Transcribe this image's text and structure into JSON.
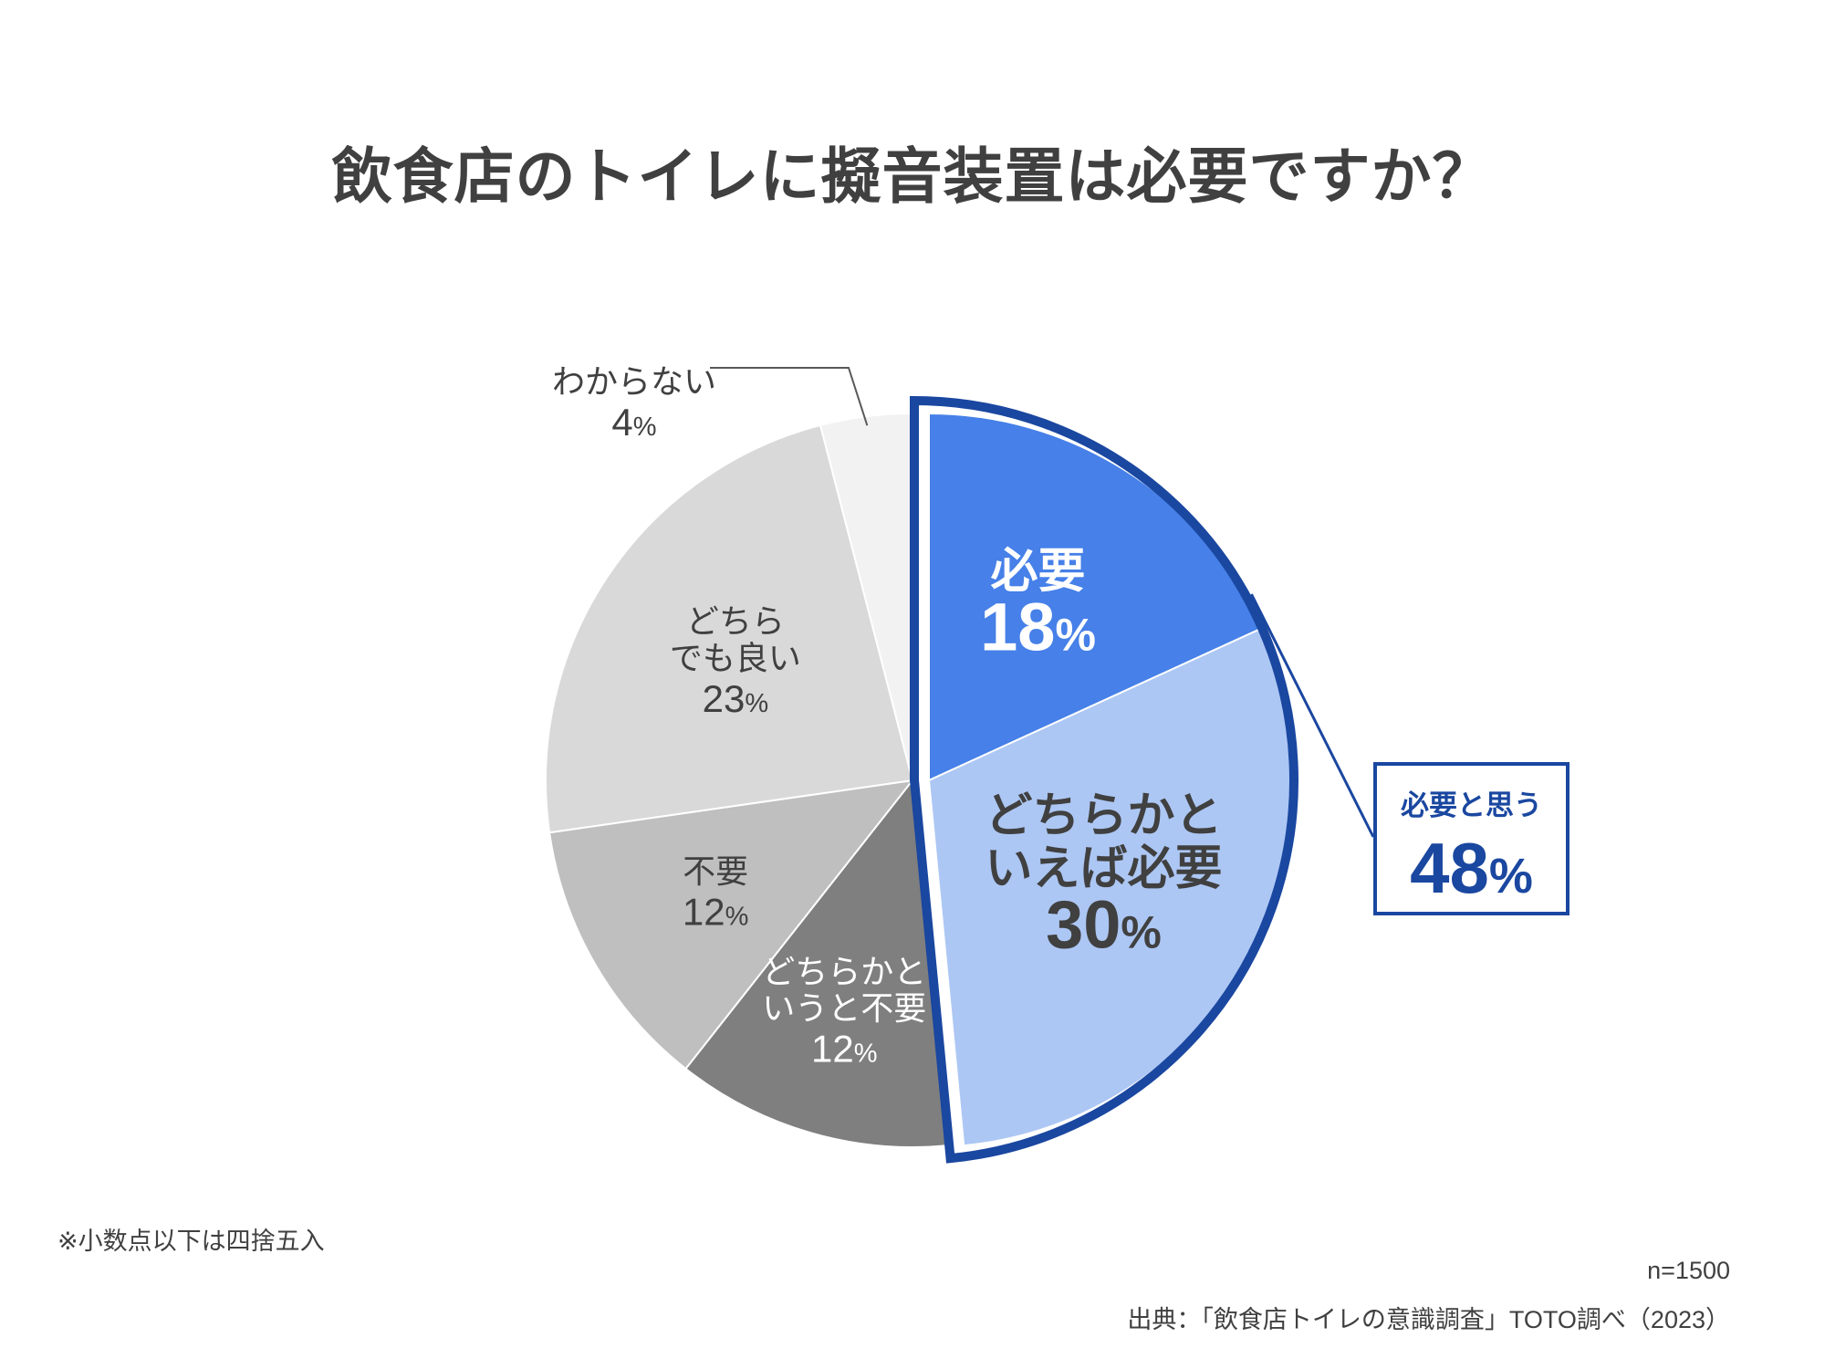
{
  "title": "飲食店のトイレに擬音装置は必要ですか？",
  "chart_data": {
    "type": "pie",
    "title": "飲食店のトイレに擬音装置は必要ですか？",
    "start_angle_deg": 0,
    "direction": "clockwise",
    "slices": [
      {
        "label_lines": [
          "必要"
        ],
        "value": 18,
        "value_text": "18",
        "color": "#4680e8",
        "label_color": "#ffffff",
        "value_color": "#ffffff",
        "bold": true,
        "label_size": 52,
        "value_size": 74
      },
      {
        "label_lines": [
          "どちらかと",
          "いえば必要"
        ],
        "value": 30,
        "value_text": "30",
        "color": "#adc7f4",
        "label_color": "#404040",
        "value_color": "#404040",
        "bold": true,
        "label_size": 52,
        "value_size": 74
      },
      {
        "label_lines": [
          "どちらかと",
          "いうと不要"
        ],
        "value": 12,
        "value_text": "12",
        "color": "#7f7f7f",
        "label_color": "#ffffff",
        "value_color": "#ffffff",
        "bold": false,
        "label_size": 36,
        "value_size": 42
      },
      {
        "label_lines": [
          "不要"
        ],
        "value": 12,
        "value_text": "12",
        "color": "#bfbfbf",
        "label_color": "#404040",
        "value_color": "#404040",
        "bold": false,
        "label_size": 36,
        "value_size": 42
      },
      {
        "label_lines": [
          "どちら",
          "でも良い"
        ],
        "value": 23,
        "value_text": "23",
        "color": "#d9d9d9",
        "label_color": "#404040",
        "value_color": "#404040",
        "bold": false,
        "label_size": 36,
        "value_size": 42
      },
      {
        "label_lines": [
          "わからない"
        ],
        "value": 4,
        "value_text": "4",
        "color": "#f2f2f2",
        "label_color": "#404040",
        "value_color": "#404040",
        "bold": false,
        "label_size": 36,
        "value_size": 42
      }
    ],
    "percent_suffix": "%",
    "highlight": {
      "label": "必要と思う",
      "value": 48,
      "value_text": "48",
      "covers_slices": [
        0,
        1
      ],
      "border_color": "#1a47a0"
    }
  },
  "footer": {
    "note": "※小数点以下は四捨五入",
    "n": "n=1500",
    "source": "出典：「飲食店トイレの意識調査」TOTO調べ（2023）"
  }
}
